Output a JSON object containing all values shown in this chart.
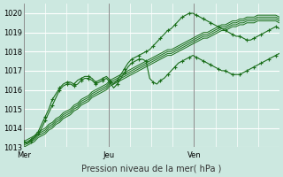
{
  "bg_color": "#cce8e0",
  "grid_color": "#ffffff",
  "line_color": "#1a6e1a",
  "xlabel": "Pression niveau de la mer( hPa )",
  "ylim": [
    1013.0,
    1020.5
  ],
  "yticks": [
    1013,
    1014,
    1015,
    1016,
    1017,
    1018,
    1019,
    1020
  ],
  "xmax": 72,
  "day_labels": [
    "Mer",
    "Jeu",
    "Ven"
  ],
  "day_positions": [
    0,
    24,
    48
  ],
  "vline_color": "#888888",
  "series": [
    {
      "type": "wavy",
      "with_markers": true,
      "data": [
        1013.3,
        1013.2,
        1013.4,
        1013.6,
        1013.8,
        1014.2,
        1014.6,
        1015.0,
        1015.5,
        1015.8,
        1016.1,
        1016.3,
        1016.4,
        1016.4,
        1016.3,
        1016.5,
        1016.6,
        1016.7,
        1016.7,
        1016.6,
        1016.4,
        1016.5,
        1016.6,
        1016.7,
        1016.5,
        1016.3,
        1016.5,
        1016.8,
        1017.1,
        1017.4,
        1017.6,
        1017.7,
        1017.8,
        1017.9,
        1018.0,
        1018.1,
        1018.3,
        1018.5,
        1018.7,
        1018.9,
        1019.1,
        1019.2,
        1019.4,
        1019.6,
        1019.8,
        1019.9,
        1020.0,
        1020.0,
        1019.9,
        1019.8,
        1019.7,
        1019.6,
        1019.5,
        1019.4,
        1019.3,
        1019.2,
        1019.1,
        1019.0,
        1018.9,
        1018.8,
        1018.8,
        1018.7,
        1018.6,
        1018.6,
        1018.7,
        1018.8,
        1018.9,
        1019.0,
        1019.1,
        1019.2,
        1019.3,
        1019.2
      ]
    },
    {
      "type": "wavy",
      "with_markers": true,
      "data": [
        1013.3,
        1013.2,
        1013.3,
        1013.5,
        1013.7,
        1014.0,
        1014.4,
        1014.8,
        1015.2,
        1015.6,
        1016.0,
        1016.2,
        1016.3,
        1016.3,
        1016.2,
        1016.3,
        1016.5,
        1016.6,
        1016.6,
        1016.5,
        1016.3,
        1016.4,
        1016.5,
        1016.6,
        1016.4,
        1016.1,
        1016.3,
        1016.6,
        1016.9,
        1017.2,
        1017.4,
        1017.5,
        1017.6,
        1017.6,
        1017.5,
        1016.6,
        1016.4,
        1016.3,
        1016.5,
        1016.6,
        1016.8,
        1017.0,
        1017.2,
        1017.4,
        1017.5,
        1017.6,
        1017.7,
        1017.8,
        1017.7,
        1017.6,
        1017.5,
        1017.4,
        1017.3,
        1017.2,
        1017.1,
        1017.0,
        1017.0,
        1016.9,
        1016.8,
        1016.8,
        1016.8,
        1016.9,
        1017.0,
        1017.1,
        1017.2,
        1017.3,
        1017.4,
        1017.5,
        1017.6,
        1017.7,
        1017.8,
        1017.9
      ]
    },
    {
      "type": "linear",
      "with_markers": false,
      "data": [
        1013.3,
        1013.4,
        1013.5,
        1013.6,
        1013.7,
        1013.9,
        1014.0,
        1014.2,
        1014.3,
        1014.5,
        1014.6,
        1014.8,
        1014.9,
        1015.0,
        1015.2,
        1015.3,
        1015.5,
        1015.6,
        1015.7,
        1015.9,
        1016.0,
        1016.1,
        1016.2,
        1016.3,
        1016.5,
        1016.6,
        1016.7,
        1016.8,
        1016.9,
        1017.0,
        1017.1,
        1017.2,
        1017.3,
        1017.4,
        1017.5,
        1017.6,
        1017.7,
        1017.8,
        1017.9,
        1018.0,
        1018.1,
        1018.1,
        1018.2,
        1018.3,
        1018.4,
        1018.5,
        1018.6,
        1018.7,
        1018.8,
        1018.9,
        1019.0,
        1019.0,
        1019.1,
        1019.2,
        1019.3,
        1019.4,
        1019.4,
        1019.5,
        1019.6,
        1019.6,
        1019.7,
        1019.7,
        1019.8,
        1019.8,
        1019.8,
        1019.9,
        1019.9,
        1019.9,
        1019.9,
        1019.9,
        1019.9,
        1019.8
      ]
    },
    {
      "type": "linear",
      "with_markers": false,
      "data": [
        1013.2,
        1013.3,
        1013.4,
        1013.5,
        1013.7,
        1013.8,
        1013.9,
        1014.1,
        1014.2,
        1014.4,
        1014.5,
        1014.7,
        1014.8,
        1014.9,
        1015.1,
        1015.2,
        1015.4,
        1015.5,
        1015.6,
        1015.8,
        1015.9,
        1016.0,
        1016.1,
        1016.2,
        1016.4,
        1016.5,
        1016.6,
        1016.7,
        1016.8,
        1016.9,
        1017.0,
        1017.1,
        1017.2,
        1017.3,
        1017.4,
        1017.5,
        1017.6,
        1017.7,
        1017.8,
        1017.9,
        1018.0,
        1018.0,
        1018.1,
        1018.2,
        1018.3,
        1018.4,
        1018.5,
        1018.6,
        1018.7,
        1018.8,
        1018.9,
        1018.9,
        1019.0,
        1019.1,
        1019.2,
        1019.3,
        1019.3,
        1019.4,
        1019.5,
        1019.5,
        1019.6,
        1019.6,
        1019.7,
        1019.7,
        1019.7,
        1019.8,
        1019.8,
        1019.8,
        1019.8,
        1019.8,
        1019.8,
        1019.7
      ]
    },
    {
      "type": "linear",
      "with_markers": false,
      "data": [
        1013.1,
        1013.2,
        1013.3,
        1013.4,
        1013.6,
        1013.7,
        1013.8,
        1014.0,
        1014.1,
        1014.3,
        1014.4,
        1014.6,
        1014.7,
        1014.8,
        1015.0,
        1015.1,
        1015.3,
        1015.4,
        1015.5,
        1015.7,
        1015.8,
        1015.9,
        1016.0,
        1016.1,
        1016.3,
        1016.4,
        1016.5,
        1016.6,
        1016.7,
        1016.8,
        1016.9,
        1017.0,
        1017.1,
        1017.2,
        1017.3,
        1017.4,
        1017.5,
        1017.6,
        1017.7,
        1017.8,
        1017.9,
        1017.9,
        1018.0,
        1018.1,
        1018.2,
        1018.3,
        1018.4,
        1018.5,
        1018.6,
        1018.7,
        1018.8,
        1018.8,
        1018.9,
        1019.0,
        1019.1,
        1019.2,
        1019.2,
        1019.3,
        1019.4,
        1019.4,
        1019.5,
        1019.5,
        1019.6,
        1019.6,
        1019.6,
        1019.7,
        1019.7,
        1019.7,
        1019.7,
        1019.7,
        1019.7,
        1019.6
      ]
    },
    {
      "type": "linear",
      "with_markers": false,
      "data": [
        1013.0,
        1013.1,
        1013.2,
        1013.3,
        1013.5,
        1013.6,
        1013.7,
        1013.9,
        1014.0,
        1014.2,
        1014.3,
        1014.5,
        1014.6,
        1014.7,
        1014.9,
        1015.0,
        1015.2,
        1015.3,
        1015.4,
        1015.6,
        1015.7,
        1015.8,
        1015.9,
        1016.0,
        1016.2,
        1016.3,
        1016.4,
        1016.5,
        1016.6,
        1016.7,
        1016.8,
        1016.9,
        1017.0,
        1017.1,
        1017.2,
        1017.3,
        1017.4,
        1017.5,
        1017.6,
        1017.7,
        1017.8,
        1017.8,
        1017.9,
        1018.0,
        1018.1,
        1018.2,
        1018.3,
        1018.4,
        1018.5,
        1018.6,
        1018.7,
        1018.7,
        1018.8,
        1018.9,
        1019.0,
        1019.1,
        1019.1,
        1019.2,
        1019.3,
        1019.3,
        1019.4,
        1019.4,
        1019.5,
        1019.5,
        1019.5,
        1019.6,
        1019.6,
        1019.6,
        1019.6,
        1019.6,
        1019.6,
        1019.5
      ]
    }
  ]
}
